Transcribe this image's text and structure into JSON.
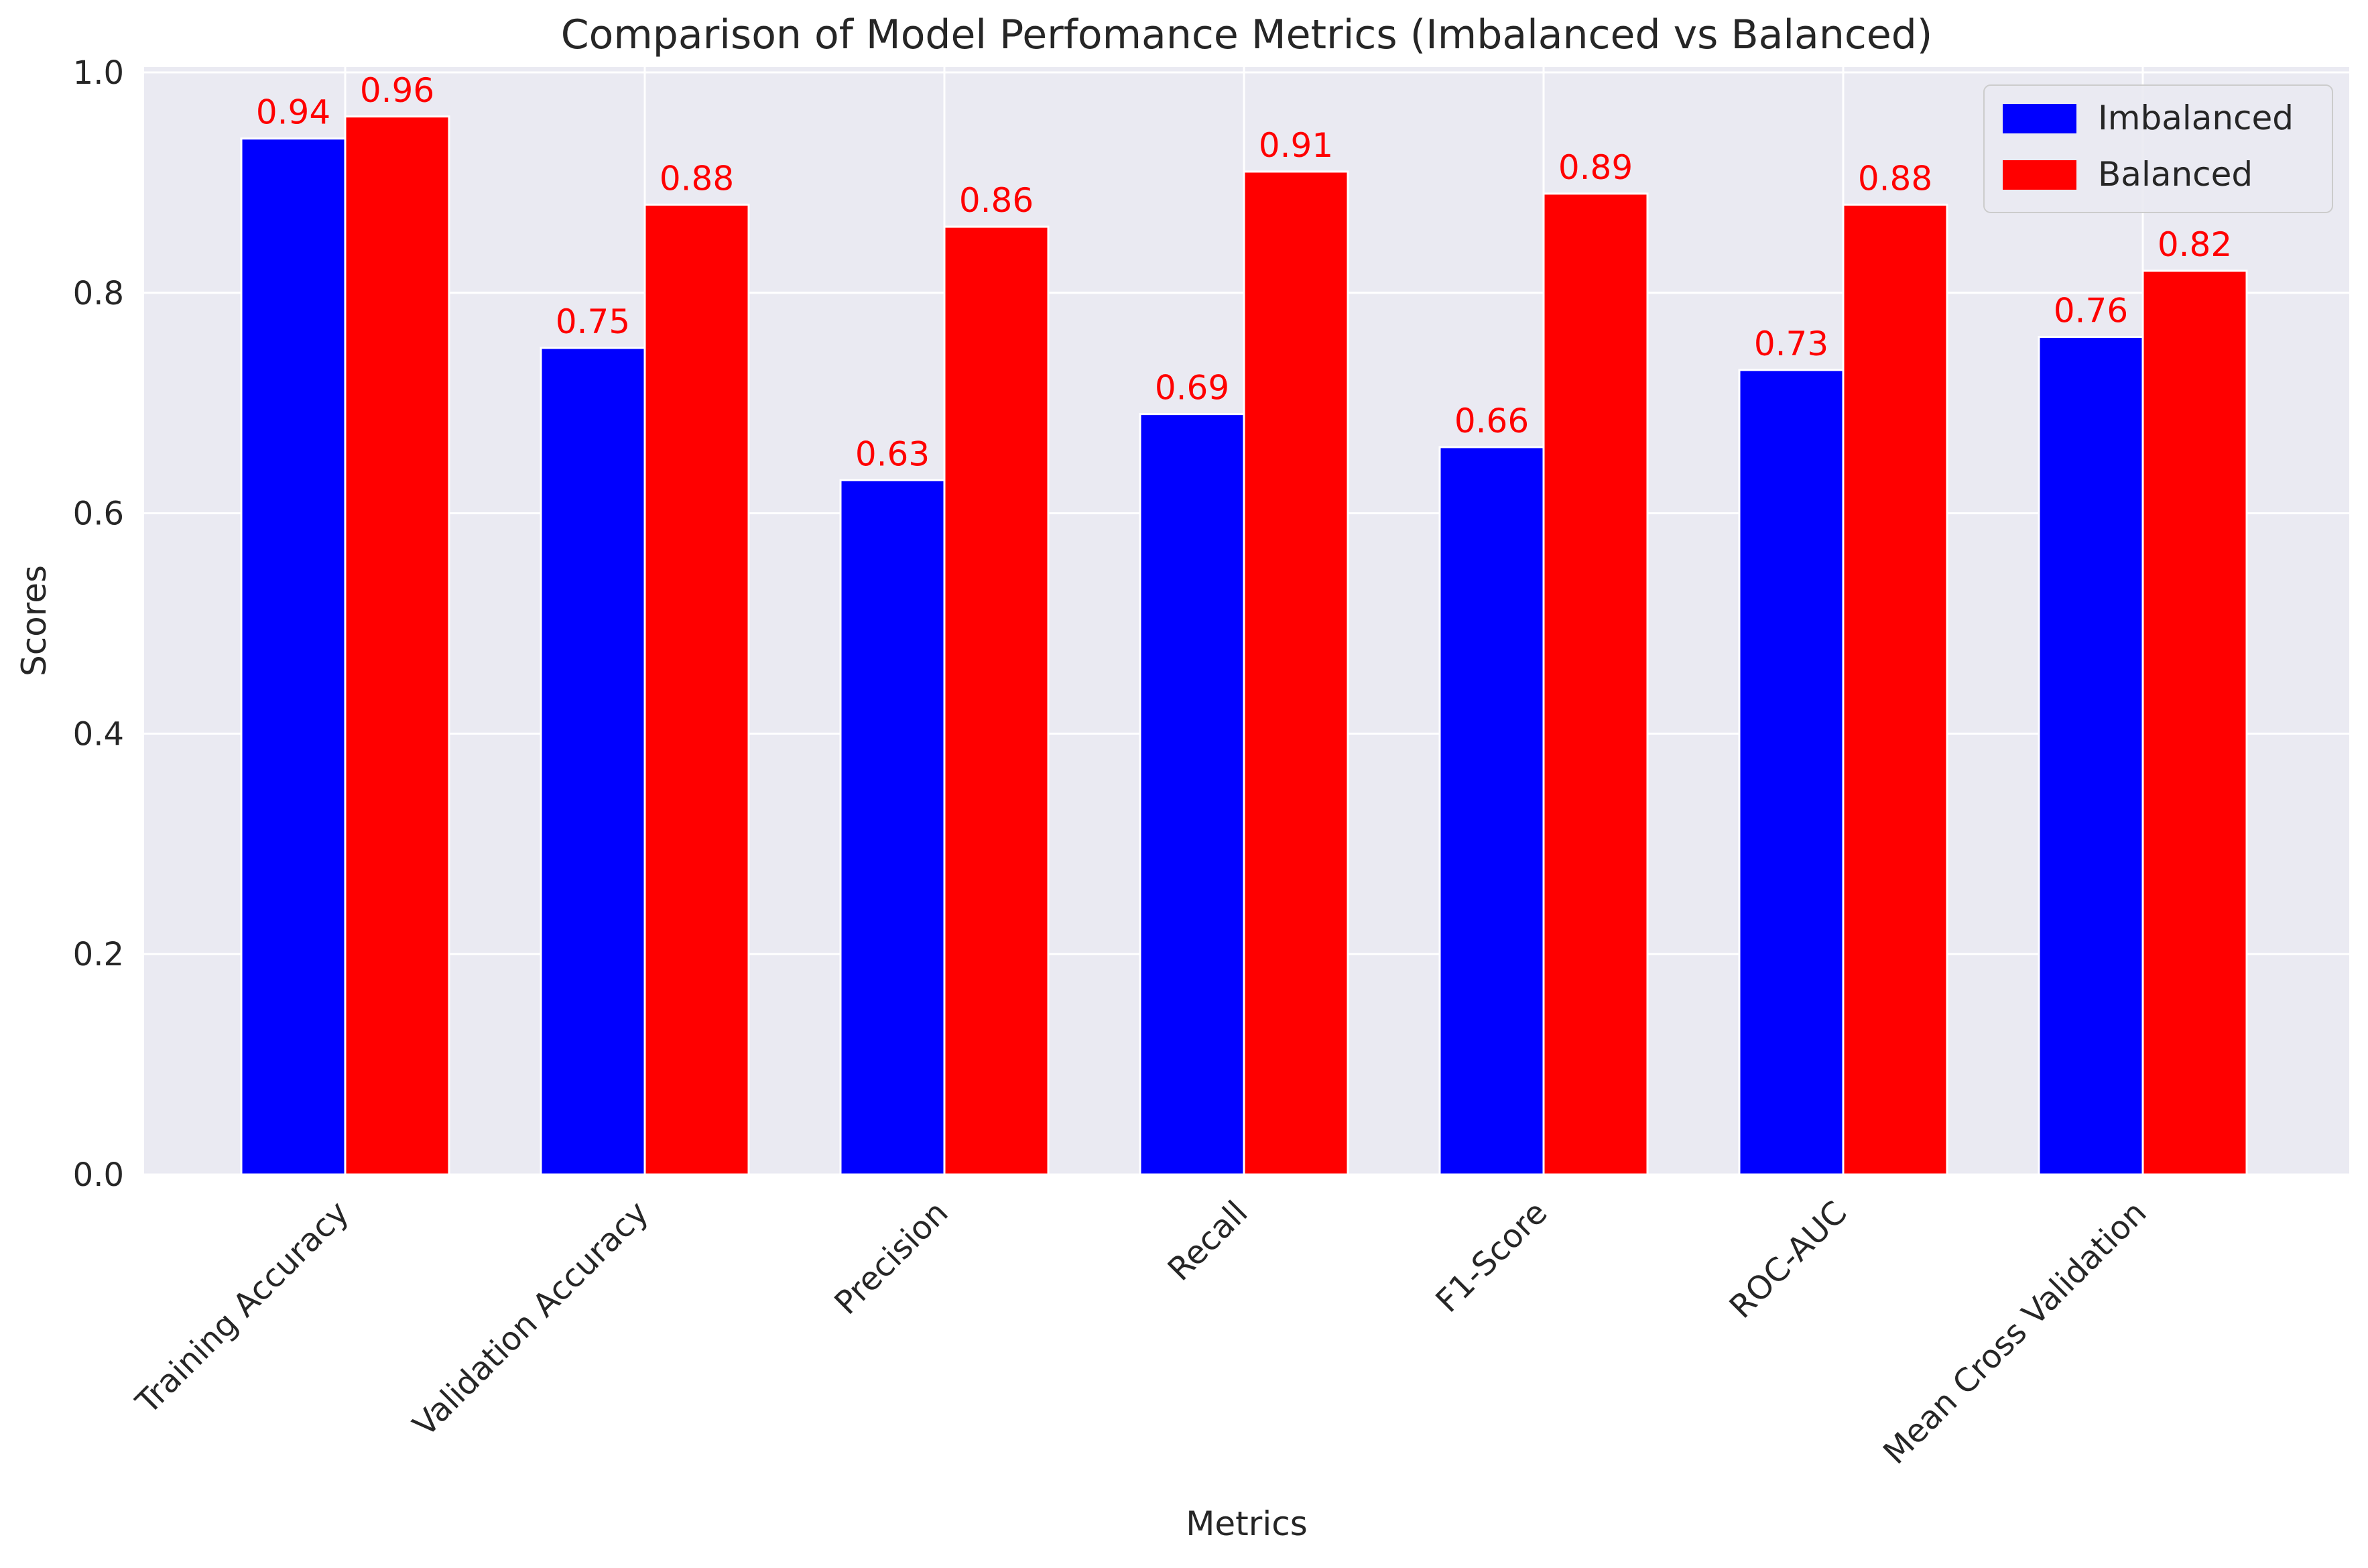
{
  "chart_data": {
    "type": "bar",
    "title": "Comparison of Model Perfomance Metrics (Imbalanced vs Balanced)",
    "xlabel": "Metrics",
    "ylabel": "Scores",
    "ylim": [
      0,
      1.0
    ],
    "yticks": [
      "0.0",
      "0.2",
      "0.4",
      "0.6",
      "0.8",
      "1.0"
    ],
    "grid": true,
    "legend_position": "top-right",
    "categories": [
      "Training Accuracy",
      "Validation Accuracy",
      "Precision",
      "Recall",
      "F1-Score",
      "ROC-AUC",
      "Mean Cross Validation"
    ],
    "series": [
      {
        "name": "Imbalanced",
        "color": "#0000ff",
        "values": [
          0.94,
          0.75,
          0.63,
          0.69,
          0.66,
          0.73,
          0.76
        ],
        "labels": [
          "0.94",
          "0.75",
          "0.63",
          "0.69",
          "0.66",
          "0.73",
          "0.76"
        ]
      },
      {
        "name": "Balanced",
        "color": "#ff0000",
        "values": [
          0.96,
          0.88,
          0.86,
          0.91,
          0.89,
          0.88,
          0.82
        ],
        "labels": [
          "0.96",
          "0.88",
          "0.86",
          "0.91",
          "0.89",
          "0.88",
          "0.82"
        ]
      }
    ],
    "label_color": "#ff0000",
    "plot_background": "#eaeaf2",
    "grid_color": "#ffffff"
  }
}
